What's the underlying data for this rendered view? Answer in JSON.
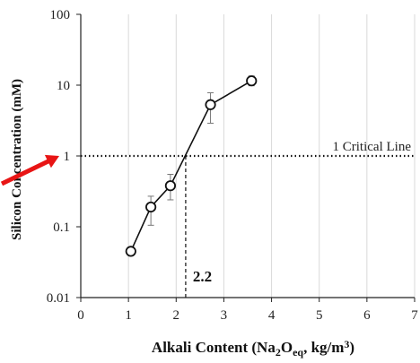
{
  "chart_data": {
    "type": "line",
    "xlabel_parts": [
      "Alkali Content (Na",
      "2",
      "O",
      "eq",
      ", kg/m",
      "3",
      ")"
    ],
    "ylabel": "Silicon Concentration (mM)",
    "xlim": [
      0,
      7
    ],
    "ylim": [
      0.01,
      100
    ],
    "y_scale": "log",
    "x_ticks": [
      0,
      1,
      2,
      3,
      4,
      5,
      6,
      7
    ],
    "y_ticks": [
      0.01,
      0.1,
      1,
      10,
      100
    ],
    "y_tick_labels": [
      "0.01",
      "0.1",
      "1",
      "10",
      "100"
    ],
    "grid": "vertical",
    "series": [
      {
        "x": [
          1.05,
          1.47,
          1.88,
          2.72,
          3.58
        ],
        "y": [
          0.045,
          0.19,
          0.38,
          5.3,
          11.5
        ],
        "err_low": [
          0.045,
          0.105,
          0.24,
          2.9,
          9.8
        ],
        "err_high": [
          0.045,
          0.27,
          0.55,
          7.8,
          13.5
        ]
      }
    ],
    "critical_line": {
      "y": 1,
      "label": "1 Critical Line"
    },
    "threshold": {
      "x": 2.2,
      "label": "2.2"
    },
    "arrow_color": "#e81515",
    "line_color": "#111111"
  }
}
